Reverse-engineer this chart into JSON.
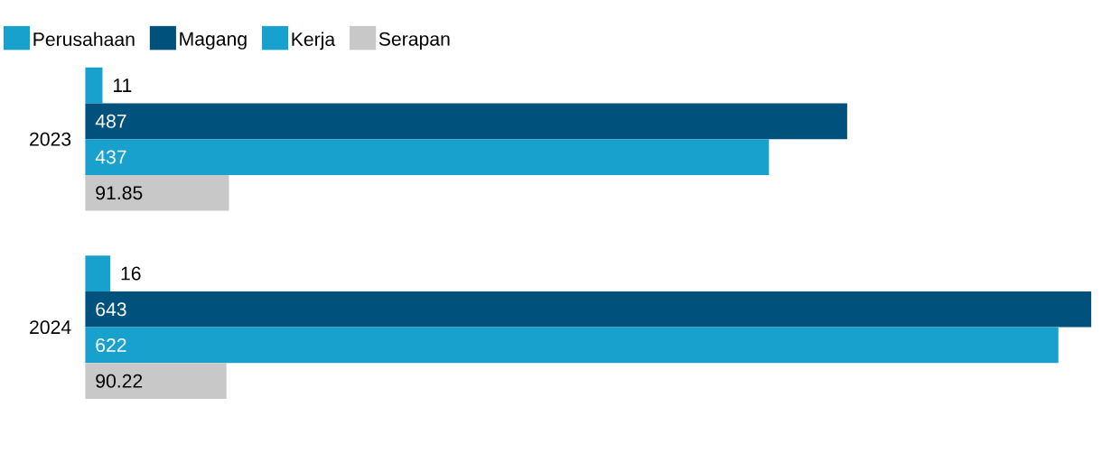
{
  "chart_data": {
    "type": "bar",
    "orientation": "horizontal",
    "categories": [
      "2023",
      "2024"
    ],
    "series": [
      {
        "name": "Perusahaan",
        "color": "#19a1cd",
        "values": [
          11,
          16
        ]
      },
      {
        "name": "Magang",
        "color": "#00527c",
        "values": [
          487,
          643
        ]
      },
      {
        "name": "Kerja",
        "color": "#19a1cd",
        "values": [
          437,
          622
        ]
      },
      {
        "name": "Serapan",
        "color": "#c8c8c8",
        "values": [
          91.85,
          90.22
        ]
      }
    ],
    "data_labels": true,
    "legend": "top left"
  }
}
